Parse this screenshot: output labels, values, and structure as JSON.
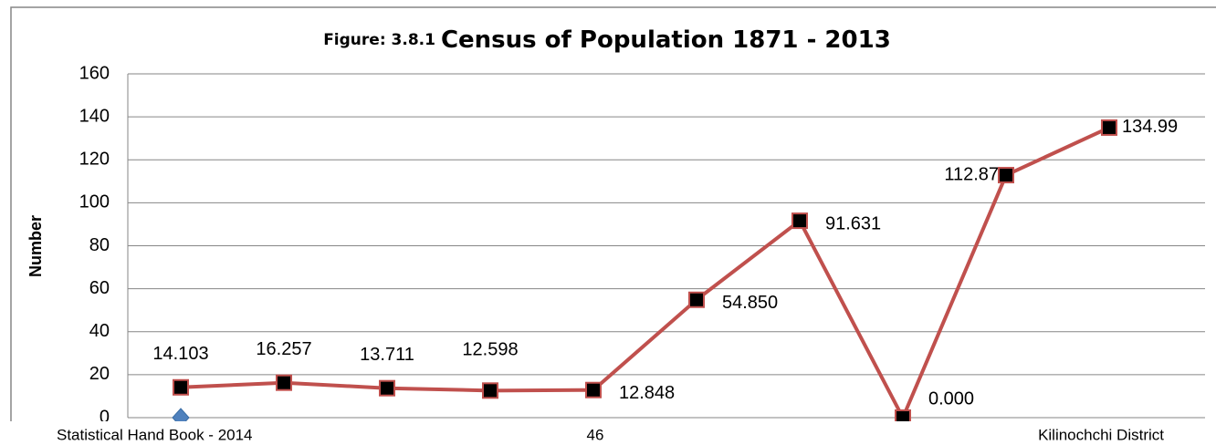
{
  "chart_data": {
    "type": "line",
    "title_prefix": "Figure: 3.8.1",
    "title": "Census of Population 1871 - 2013",
    "ylabel": "Number",
    "categories": [
      null,
      null,
      null,
      null,
      null,
      null,
      null,
      null,
      null,
      null
    ],
    "series": [
      {
        "color": "#c0504d",
        "marker": "square",
        "values": [
          14.103,
          16.257,
          13.711,
          12.598,
          12.848,
          54.85,
          91.631,
          0,
          112.87,
          134.99
        ],
        "value_labels": [
          "14.103",
          "16.257",
          "13.711",
          "12.598",
          "12.848",
          "54.850",
          "91.631",
          "0.000",
          "112.87",
          "134.99"
        ]
      },
      {
        "color": "#4f81bd",
        "marker": "diamond",
        "values": [
          0,
          null,
          null,
          null,
          null,
          null,
          null,
          null,
          null,
          null
        ]
      }
    ],
    "ylim": [
      0,
      160
    ],
    "yticks": [
      0,
      20,
      40,
      60,
      80,
      100,
      120,
      140,
      160
    ],
    "grid": true
  },
  "footer": {
    "left": "Statistical Hand Book - 2014",
    "center": "46",
    "right": "Kilinochchi District"
  }
}
